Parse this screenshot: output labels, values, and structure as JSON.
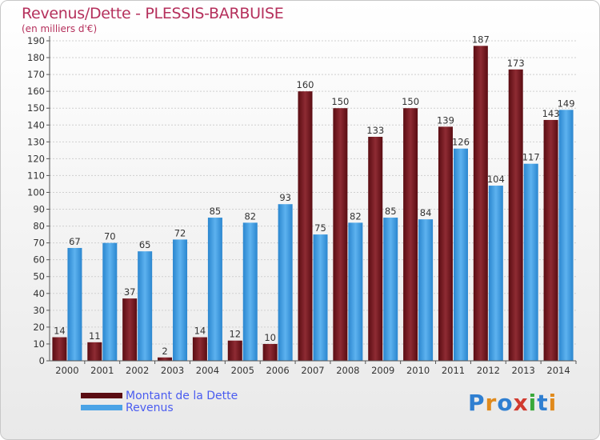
{
  "title": "Revenus/Dette - PLESSIS-BARBUISE",
  "subtitle": "(en milliers d'€)",
  "logo": {
    "text": "Proxiti",
    "letters": [
      {
        "ch": "P",
        "color": "#2f7fd1"
      },
      {
        "ch": "r",
        "color": "#e08a1c"
      },
      {
        "ch": "o",
        "color": "#2f7fd1"
      },
      {
        "ch": "x",
        "color": "#d13a2f"
      },
      {
        "ch": "i",
        "color": "#3aa83a"
      },
      {
        "ch": "t",
        "color": "#2f7fd1"
      },
      {
        "ch": "i",
        "color": "#e08a1c"
      }
    ]
  },
  "colors": {
    "dette": "#7a1c24",
    "revenus": "#4aa3e6",
    "axis_text": "#333333",
    "grid": "#cccccc"
  },
  "chart_data": {
    "type": "bar",
    "categories": [
      "2000",
      "2001",
      "2002",
      "2003",
      "2004",
      "2005",
      "2006",
      "2007",
      "2008",
      "2009",
      "2010",
      "2011",
      "2012",
      "2013",
      "2014"
    ],
    "series": [
      {
        "name": "Montant de la Dette",
        "values": [
          14,
          11,
          37,
          2,
          14,
          12,
          10,
          160,
          150,
          133,
          150,
          139,
          187,
          173,
          143
        ]
      },
      {
        "name": "Revenus",
        "values": [
          67,
          70,
          65,
          72,
          85,
          82,
          93,
          75,
          82,
          85,
          84,
          126,
          104,
          117,
          149
        ]
      }
    ],
    "title": "Revenus/Dette - PLESSIS-BARBUISE",
    "ylabel": "(en milliers d'€)",
    "ylim": [
      0,
      190
    ],
    "yticks": [
      0,
      10,
      20,
      30,
      40,
      50,
      60,
      70,
      80,
      90,
      100,
      110,
      120,
      130,
      140,
      150,
      160,
      170,
      180,
      190
    ],
    "grid": true,
    "legend": "bottom-left"
  }
}
